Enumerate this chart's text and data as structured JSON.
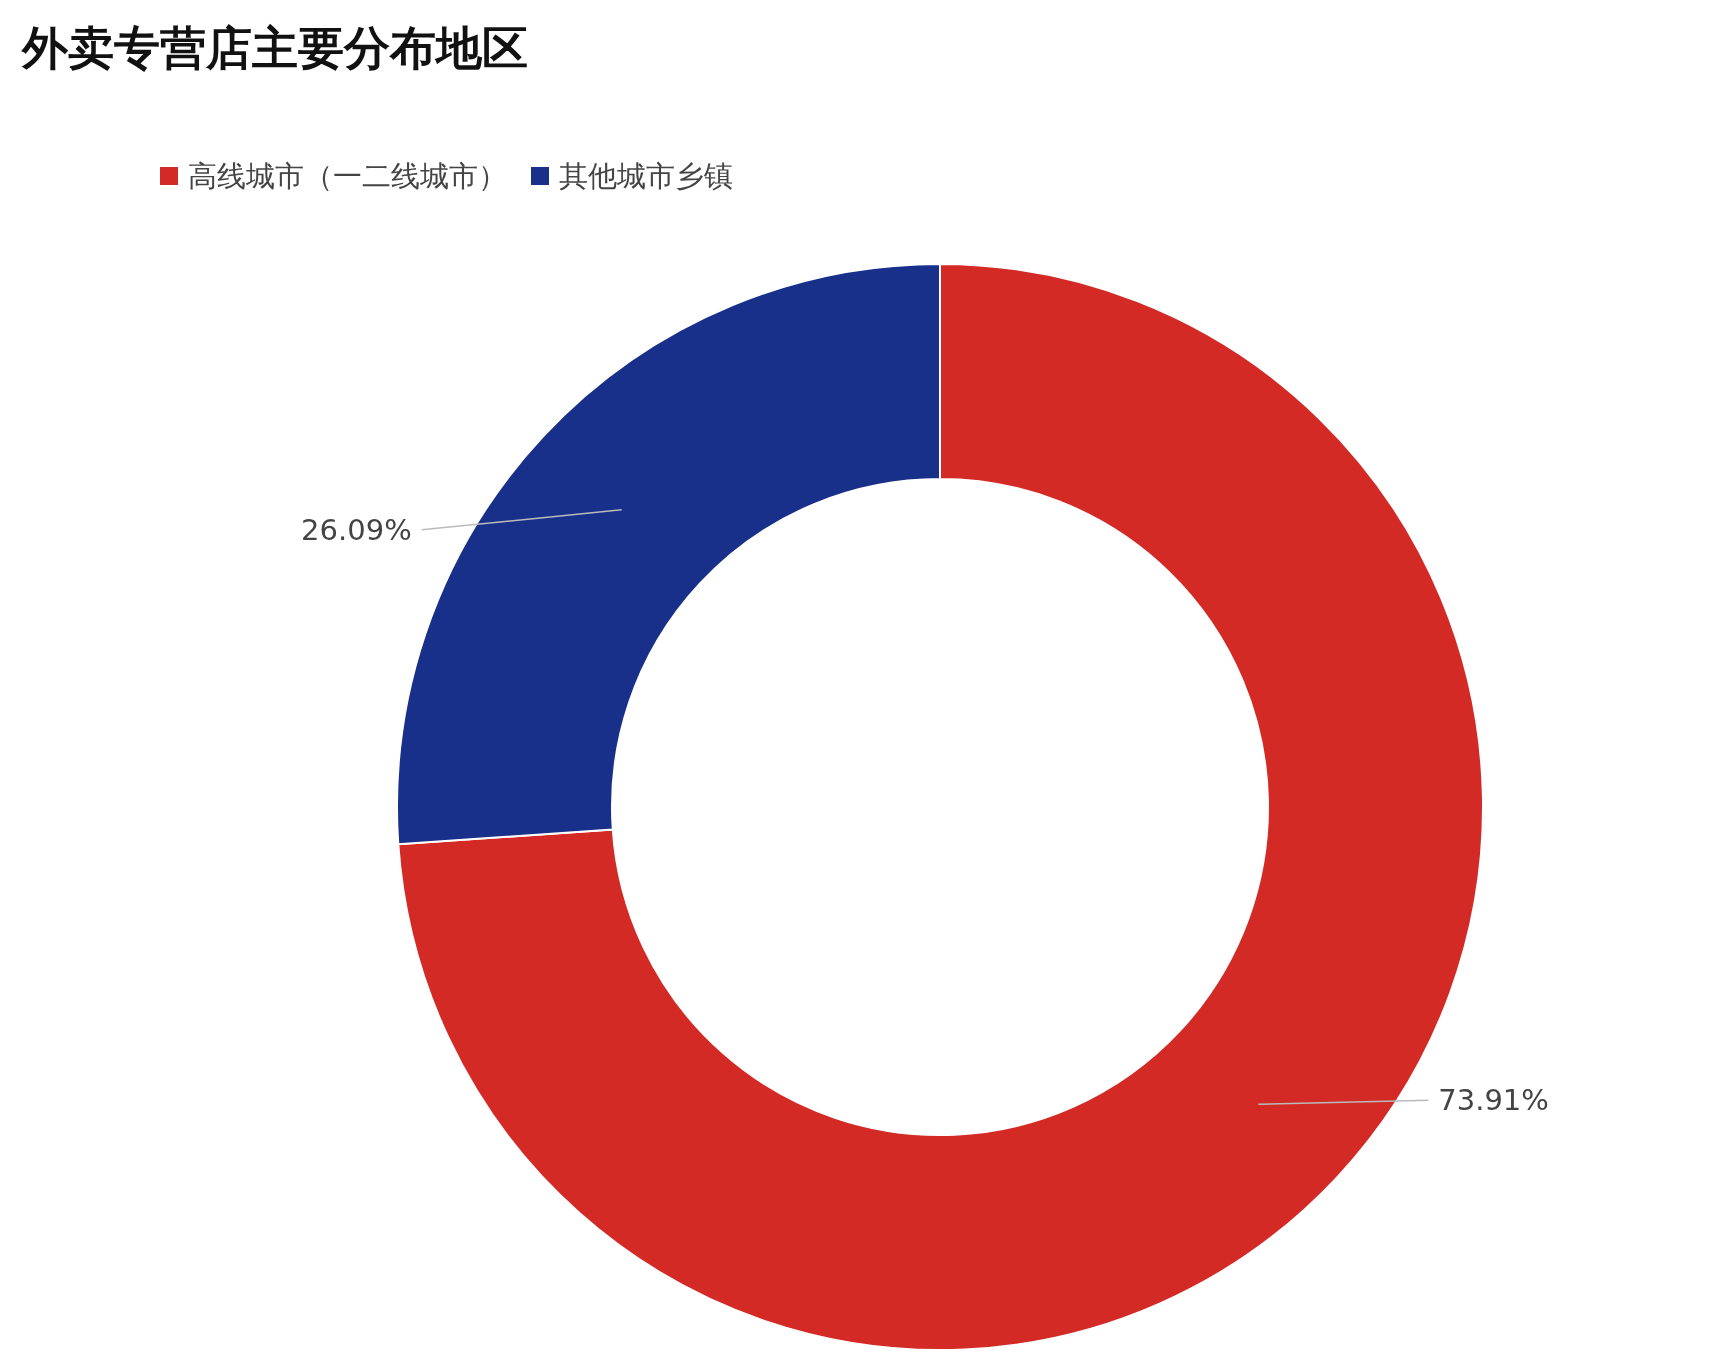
{
  "chart_data": {
    "type": "donut",
    "title": "外卖专营店主要分布地区",
    "categories": [
      "高线城市（一二线城市）",
      "其他城市乡镇"
    ],
    "values": [
      73.91,
      26.09
    ],
    "colors": [
      "#d32a26",
      "#18308a"
    ],
    "value_labels": [
      "73.91%",
      "26.09%"
    ],
    "legend": "top left"
  }
}
